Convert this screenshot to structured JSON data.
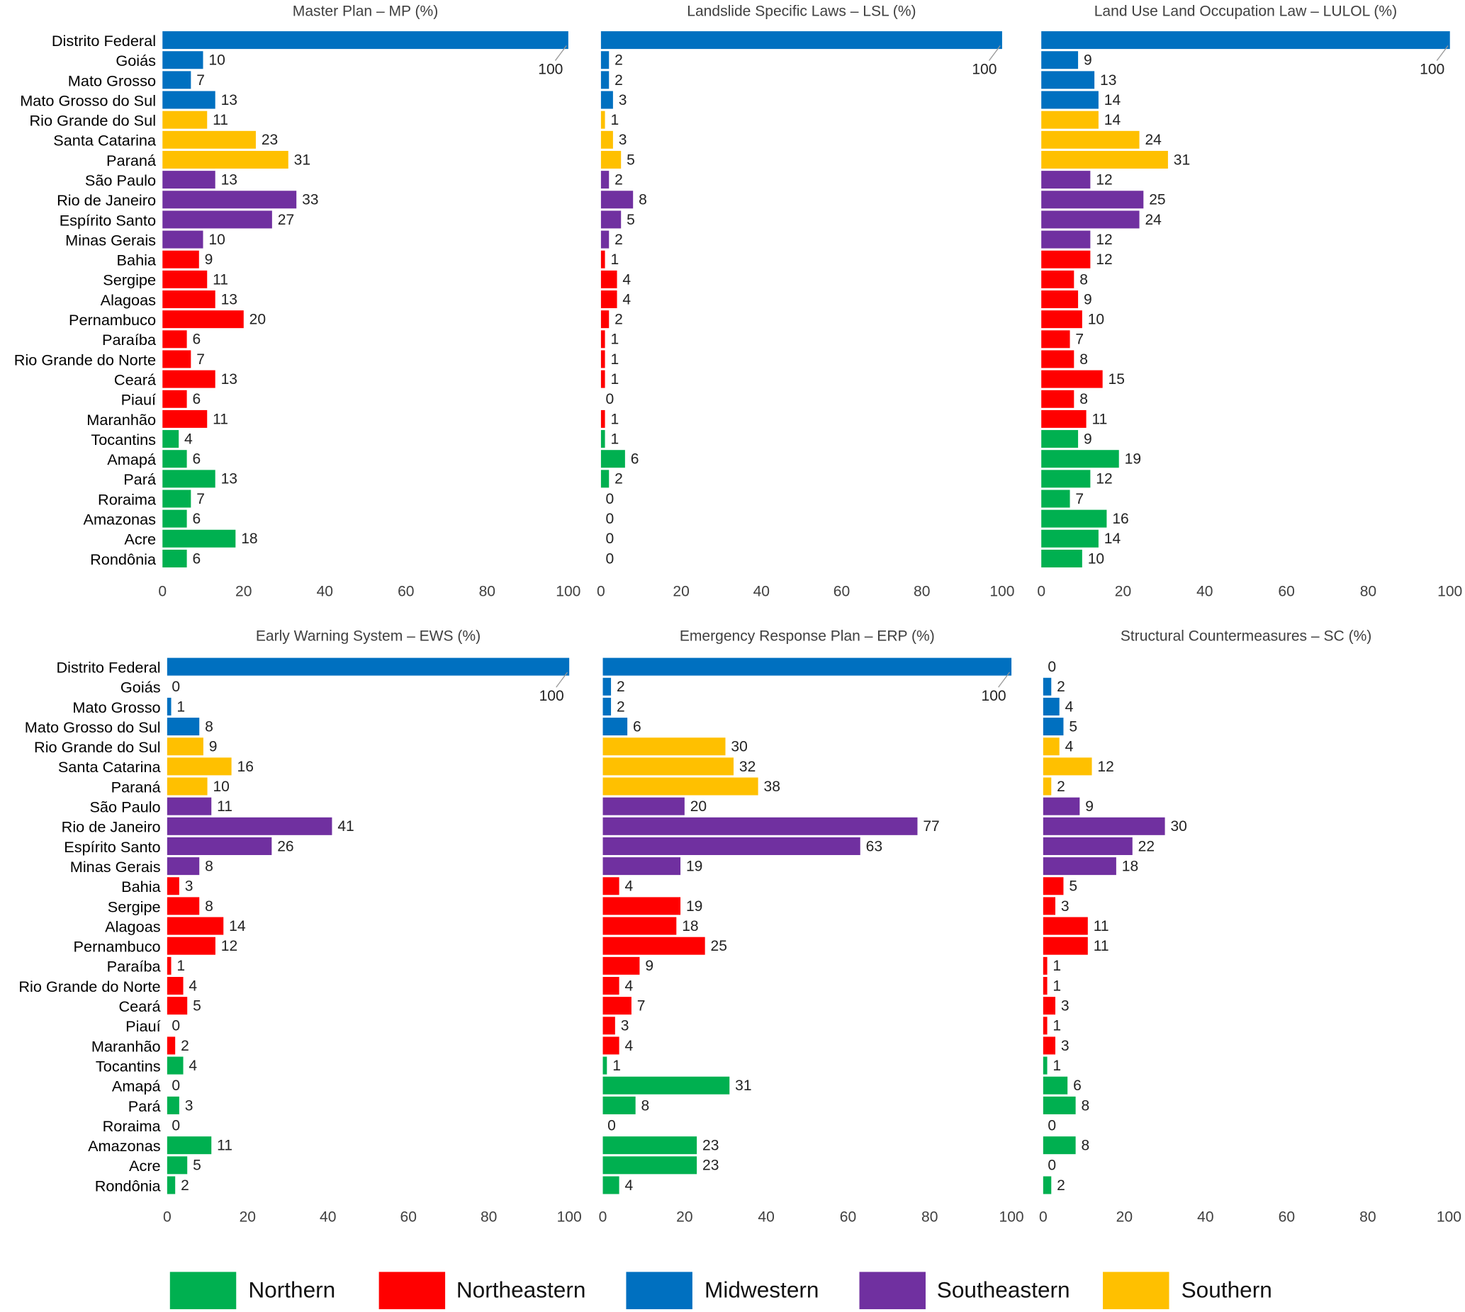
{
  "chart_data": {
    "type": "bar",
    "orientation": "horizontal",
    "categories": [
      "Distrito Federal",
      "Goiás",
      "Mato Grosso",
      "Mato Grosso do Sul",
      "Rio Grande do Sul",
      "Santa Catarina",
      "Paraná",
      "São Paulo",
      "Rio de Janeiro",
      "Espírito Santo",
      "Minas Gerais",
      "Bahia",
      "Sergipe",
      "Alagoas",
      "Pernambuco",
      "Paraíba",
      "Rio Grande do Norte",
      "Ceará",
      "Piauí",
      "Maranhão",
      "Tocantins",
      "Amapá",
      "Pará",
      "Roraima",
      "Amazonas",
      "Acre",
      "Rondônia"
    ],
    "category_regions": [
      "Midwestern",
      "Midwestern",
      "Midwestern",
      "Midwestern",
      "Southern",
      "Southern",
      "Southern",
      "Southeastern",
      "Southeastern",
      "Southeastern",
      "Southeastern",
      "Northeastern",
      "Northeastern",
      "Northeastern",
      "Northeastern",
      "Northeastern",
      "Northeastern",
      "Northeastern",
      "Northeastern",
      "Northeastern",
      "Northern",
      "Northern",
      "Northern",
      "Northern",
      "Northern",
      "Northern",
      "Northern"
    ],
    "legend": [
      {
        "name": "Northern",
        "color": "#00b050"
      },
      {
        "name": "Northeastern",
        "color": "#ff0000"
      },
      {
        "name": "Midwestern",
        "color": "#0070c0"
      },
      {
        "name": "Southeastern",
        "color": "#7030a0"
      },
      {
        "name": "Southern",
        "color": "#ffc000"
      }
    ],
    "legend_placement": "bottom",
    "xlim": [
      0,
      100
    ],
    "x_ticks": [
      "0",
      "20",
      "40",
      "60",
      "80",
      "100"
    ],
    "grid": false,
    "panels": [
      {
        "title": "Master Plan – MP (%)",
        "values": [
          100,
          10,
          7,
          13,
          11,
          23,
          31,
          13,
          33,
          27,
          10,
          9,
          11,
          13,
          20,
          6,
          7,
          13,
          6,
          11,
          4,
          6,
          13,
          7,
          6,
          18,
          6
        ]
      },
      {
        "title": "Landslide Specific Laws – LSL (%)",
        "values": [
          100,
          2,
          2,
          3,
          1,
          3,
          5,
          2,
          8,
          5,
          2,
          1,
          4,
          4,
          2,
          1,
          1,
          1,
          0,
          1,
          1,
          6,
          2,
          0,
          0,
          0,
          0
        ]
      },
      {
        "title": "Land Use Land Occupation Law – LULOL (%)",
        "values": [
          100,
          9,
          13,
          14,
          14,
          24,
          31,
          12,
          25,
          24,
          12,
          12,
          8,
          9,
          10,
          7,
          8,
          15,
          8,
          11,
          9,
          19,
          12,
          7,
          16,
          14,
          10
        ]
      },
      {
        "title": "Early Warning System – EWS (%)",
        "values": [
          100,
          0,
          1,
          8,
          9,
          16,
          10,
          11,
          41,
          26,
          8,
          3,
          8,
          14,
          12,
          1,
          4,
          5,
          0,
          2,
          4,
          0,
          3,
          0,
          11,
          5,
          2
        ]
      },
      {
        "title": "Emergency Response Plan – ERP (%)",
        "values": [
          100,
          2,
          2,
          6,
          30,
          32,
          38,
          20,
          77,
          63,
          19,
          4,
          19,
          18,
          25,
          9,
          4,
          7,
          3,
          4,
          1,
          31,
          8,
          0,
          23,
          23,
          4
        ]
      },
      {
        "title": "Structural Countermeasures – SC (%)",
        "values": [
          0,
          2,
          4,
          5,
          4,
          12,
          2,
          9,
          30,
          22,
          18,
          5,
          3,
          11,
          11,
          1,
          1,
          3,
          1,
          3,
          1,
          6,
          8,
          0,
          8,
          0,
          2
        ]
      }
    ]
  }
}
